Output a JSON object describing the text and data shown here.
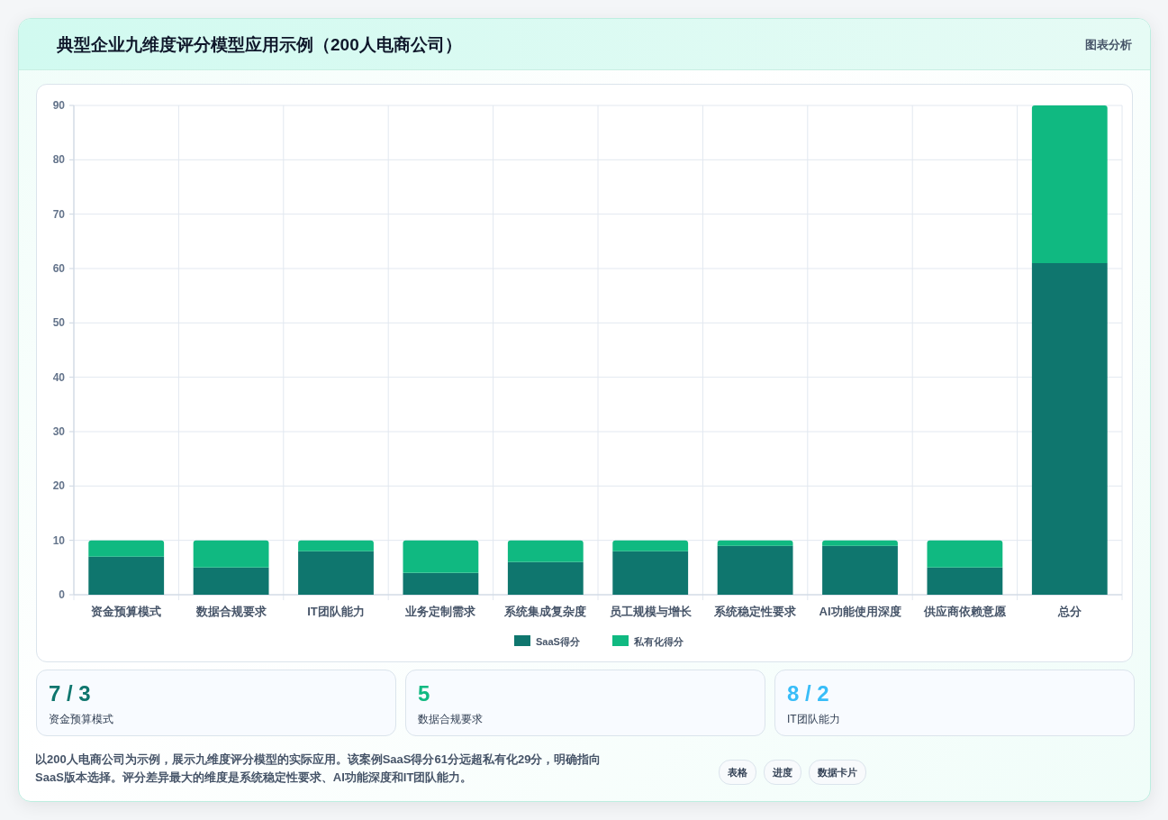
{
  "chart_data": [
    {
      "type": "bar",
      "title": "典型企业九维度评分模型应用示例（200人电商公司）",
      "annotations": [
        "图表分析"
      ],
      "stacked": true,
      "grid": true,
      "legend": "bottom",
      "categories": [
        "资金预算模式",
        "数据合规要求",
        "IT团队能力",
        "业务定制需求",
        "系统集成复杂度",
        "员工规模与增长",
        "系统稳定性要求",
        "AI功能使用深度",
        "供应商依赖意愿",
        "总分"
      ],
      "series": [
        {
          "name": "SaaS得分",
          "color": "#0f766e",
          "values": [
            7,
            5,
            8,
            4,
            6,
            8,
            9,
            9,
            5,
            61
          ]
        },
        {
          "name": "私有化得分",
          "color": "#10b981",
          "values": [
            3,
            5,
            2,
            6,
            4,
            2,
            1,
            1,
            5,
            29
          ]
        }
      ],
      "ylim": [
        0,
        90
      ],
      "yticks": [
        0,
        10,
        20,
        30,
        40,
        50,
        60,
        70,
        80,
        90
      ]
    },
    {
      "type": "other",
      "categories": [
        "资金预算模式",
        "数据合规要求",
        "IT团队能力"
      ],
      "value_labels": [
        "7 / 3",
        "5",
        "8 / 2"
      ],
      "annotations": [
        "以200人电商公司为示例，展示九维度评分模型的实际应用。该案例SaaS得分61分远超私有化29分，明确指向SaaS版本选择。评分差异最大的维度是系统稳定性要求、AI功能深度和IT团队能力。",
        "表格",
        "进度",
        "数据卡片"
      ]
    }
  ]
}
